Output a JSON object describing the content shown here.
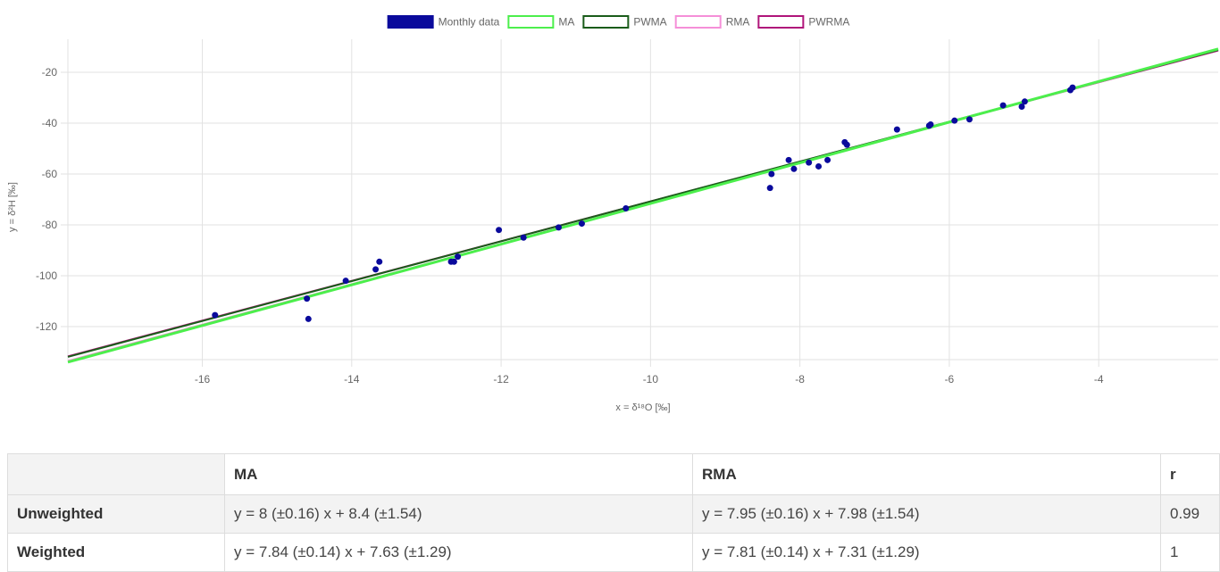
{
  "chart_data": {
    "type": "scatter",
    "xlabel": "x = δ¹⁸O [‰]",
    "ylabel": "y = δ²H [‰]",
    "xlim": [
      -17.8,
      -2.4
    ],
    "ylim": [
      -133,
      -7
    ],
    "xticks": [
      -16,
      -14,
      -12,
      -10,
      -8,
      -6,
      -4
    ],
    "yticks": [
      -20,
      -40,
      -60,
      -80,
      -100,
      -120
    ],
    "grid": true,
    "legend_position": "top",
    "legend": [
      {
        "name": "Monthly data",
        "fill": "#0a0a9c",
        "stroke": "#0a0a9c"
      },
      {
        "name": "MA",
        "fill": "#ffffff",
        "stroke": "#4cef4c"
      },
      {
        "name": "PWMA",
        "fill": "#ffffff",
        "stroke": "#1a5c1a"
      },
      {
        "name": "RMA",
        "fill": "#ffffff",
        "stroke": "#f58fd8"
      },
      {
        "name": "PWRMA",
        "fill": "#ffffff",
        "stroke": "#b0157a"
      }
    ],
    "points": [
      [
        -15.83,
        -115.5
      ],
      [
        -14.6,
        -109
      ],
      [
        -14.58,
        -117
      ],
      [
        -14.08,
        -102
      ],
      [
        -13.68,
        -97.5
      ],
      [
        -13.63,
        -94.5
      ],
      [
        -12.67,
        -94.5
      ],
      [
        -12.63,
        -94.5
      ],
      [
        -12.58,
        -92.5
      ],
      [
        -12.03,
        -82
      ],
      [
        -11.7,
        -85
      ],
      [
        -11.23,
        -81
      ],
      [
        -10.92,
        -79.5
      ],
      [
        -10.33,
        -73.5
      ],
      [
        -8.4,
        -65.5
      ],
      [
        -8.38,
        -60
      ],
      [
        -8.15,
        -54.5
      ],
      [
        -8.08,
        -58
      ],
      [
        -7.88,
        -55.5
      ],
      [
        -7.75,
        -57
      ],
      [
        -7.63,
        -54.5
      ],
      [
        -7.4,
        -47.5
      ],
      [
        -7.37,
        -48.5
      ],
      [
        -6.7,
        -42.5
      ],
      [
        -6.27,
        -41
      ],
      [
        -6.25,
        -40.5
      ],
      [
        -5.93,
        -39
      ],
      [
        -5.73,
        -38.5
      ],
      [
        -5.28,
        -33
      ],
      [
        -5.03,
        -33.5
      ],
      [
        -4.99,
        -31.5
      ],
      [
        -4.38,
        -27
      ],
      [
        -4.35,
        -26
      ]
    ],
    "lines": [
      {
        "name": "MA",
        "slope": 8,
        "intercept": 8.4,
        "color": "#4cef4c"
      },
      {
        "name": "PWMA",
        "slope": 7.84,
        "intercept": 7.63,
        "color": "#1a5c1a"
      },
      {
        "name": "RMA",
        "slope": 7.95,
        "intercept": 7.98,
        "color": "#f58fd8"
      },
      {
        "name": "PWRMA",
        "slope": 7.81,
        "intercept": 7.31,
        "color": "#b0157a"
      }
    ],
    "point_color": "#0a0a9c"
  },
  "table": {
    "headers": [
      "",
      "MA",
      "RMA",
      "r"
    ],
    "rows": [
      {
        "label": "Unweighted",
        "ma": "y = 8 (±0.16) x + 8.4 (±1.54)",
        "rma": "y = 7.95 (±0.16) x + 7.98 (±1.54)",
        "r": "0.99"
      },
      {
        "label": "Weighted",
        "ma": "y = 7.84 (±0.14) x + 7.63 (±1.29)",
        "rma": "y = 7.81 (±0.14) x + 7.31 (±1.29)",
        "r": "1"
      }
    ]
  }
}
